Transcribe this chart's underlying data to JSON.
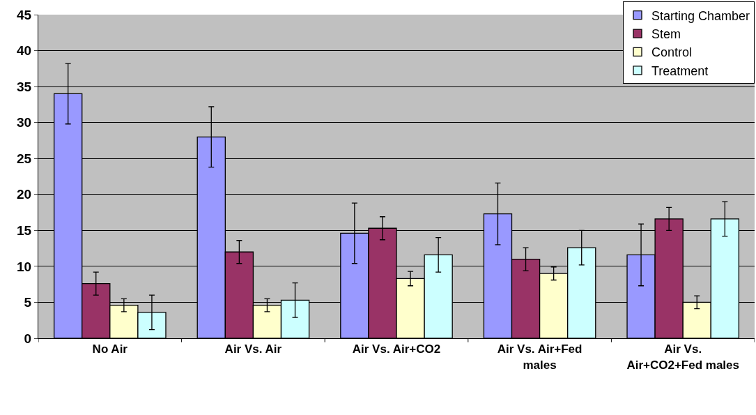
{
  "chart_data": {
    "type": "bar",
    "categories": [
      "No Air",
      "Air Vs. Air",
      "Air Vs. Air+CO2",
      "Air Vs. Air+Fed males",
      "Air Vs. Air+CO2+Fed males"
    ],
    "series": [
      {
        "name": "Starting Chamber",
        "color": "#9999ff",
        "values": [
          34.0,
          28.0,
          14.6,
          17.3,
          11.6
        ],
        "errors": [
          4.2,
          4.2,
          4.2,
          4.3,
          4.3
        ]
      },
      {
        "name": "Stem",
        "color": "#993366",
        "values": [
          7.6,
          12.0,
          15.3,
          11.0,
          16.6
        ],
        "errors": [
          1.6,
          1.6,
          1.6,
          1.6,
          1.6
        ]
      },
      {
        "name": "Control",
        "color": "#ffffcc",
        "values": [
          4.6,
          4.6,
          8.3,
          9.0,
          5.0
        ],
        "errors": [
          0.9,
          0.9,
          1.0,
          0.9,
          0.9
        ]
      },
      {
        "name": "Treatment",
        "color": "#ccffff",
        "values": [
          3.6,
          5.3,
          11.6,
          12.6,
          16.6
        ],
        "errors": [
          2.4,
          2.4,
          2.4,
          2.4,
          2.4
        ]
      }
    ],
    "ylim": [
      0,
      45
    ],
    "yticks": [
      0,
      5,
      10,
      15,
      20,
      25,
      30,
      35,
      40,
      45
    ],
    "grid": "y",
    "legend": "top right"
  }
}
